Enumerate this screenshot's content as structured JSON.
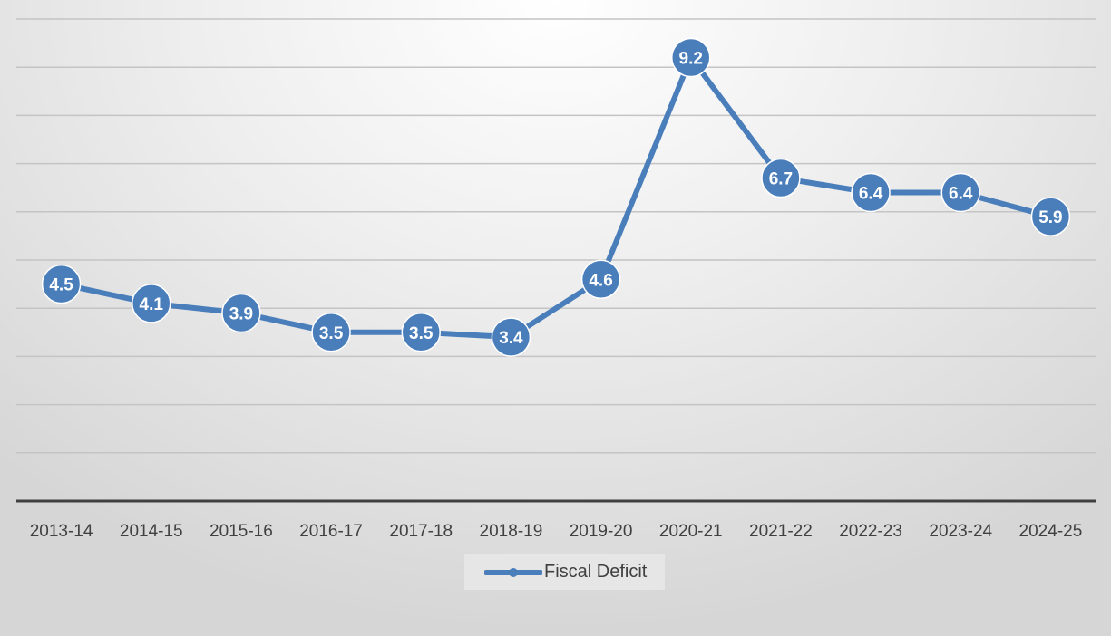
{
  "chart_data": {
    "type": "line",
    "title": "",
    "xlabel": "",
    "ylabel": "",
    "categories": [
      "2013-14",
      "2014-15",
      "2015-16",
      "2016-17",
      "2017-18",
      "2018-19",
      "2019-20",
      "2020-21",
      "2021-22",
      "2022-23",
      "2023-24",
      "2024-25"
    ],
    "series": [
      {
        "name": "Fiscal Deficit",
        "values": [
          4.5,
          4.1,
          3.9,
          3.5,
          3.5,
          3.4,
          4.6,
          9.2,
          6.7,
          6.4,
          6.4,
          5.9
        ],
        "color": "#4a7ebb"
      }
    ],
    "ylim": [
      0,
      10
    ],
    "grid": true,
    "y_axis_labels_shown": false,
    "data_labels": true,
    "legend": "bottom"
  }
}
